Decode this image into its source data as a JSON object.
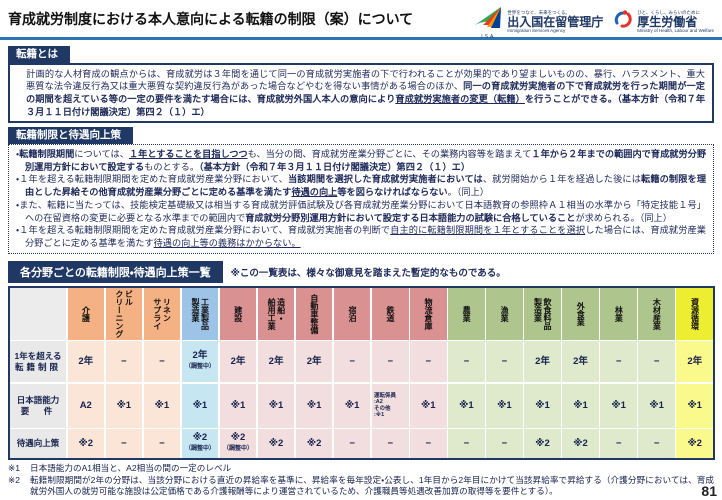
{
  "header": {
    "title": "育成就労制度における本人意向による転籍の制限（案）について",
    "isa": {
      "abbr": "ISA",
      "tagline": "世界をつなぐ、未来をつくる。",
      "name": "出入国在留管理庁",
      "name_en": "Immigration Services Agency"
    },
    "mhlw": {
      "tagline": "ひと、くらし、みらいのために",
      "name": "厚生労働省",
      "name_en": "Ministry of Health, Labour and Welfare"
    }
  },
  "colors": {
    "navy": "#1f3864",
    "rule_blue": "#2e75b6",
    "group_orange": "#f4b183",
    "group_blue": "#9dc3e6",
    "group_red": "#d99191",
    "group_green": "#aec68e",
    "group_yellow": "#eded32",
    "label_gray": "#e9e9e9"
  },
  "section1": {
    "title": "転籍とは",
    "seg1": "　計画的な人材育成の観点からは、育成就労は３年間を通じて同一の育成就労実施者の下で行われることが効果的であり望ましいものの、暴行、ハラスメント、重大悪質な法令違反行為又は重大悪質な契約違反行為があった場合などやむを得ない事情がある場合のほか、",
    "seg2": "同一の育成就労実施者の下で育成就労を行った期間が一定の期間を超えている等の一定の要件を満たす場合には、育成就労外国人本人の意向により",
    "seg3": "育成就労実施者の変更（転籍）",
    "seg4": "を行うことができる。（基本方針（令和７年３月１１日付け閣議決定）第四２（１）エ）"
  },
  "section2": {
    "title": "転籍制限と待遇向上策",
    "b1s1": "・",
    "b1s2": "転籍制限期間",
    "b1s3": "については、",
    "b1s4": "１年とすることを目指しつつ",
    "b1s5": "も、当分の間、育成就労産業分野ごとに、その業務内容等を踏まえて",
    "b1s6": "１年から２年までの範囲内で育成就労分野別運用方針において設定する",
    "b1s7": "ものとする。",
    "b1s8": "（基本方針（令和７年３月１１日付け閣議決定）第四２（１）エ）",
    "b2s1": "・１年を超える転籍制限期間を定めた育成就労産業分野において、",
    "b2s2": "当該期間を選択した育成就労実施者においては",
    "b2s3": "、就労開始から１年を経過した後には",
    "b2s4": "転籍の制限を理由とした昇給その他育成就労産業分野ごとに定める基準を満たす",
    "b2s5": "待遇の向上",
    "b2s6": "等を図らなければならない",
    "b2s7": "。（同上）",
    "b3s1": "・また、転籍に当たっては、技能検定基礎級又は相当する育成就労評価試験及び各育成就労産業分野において日本語教育の参照枠Ａ１相当の水準から「特定技能１号」への在留資格の変更に必要となる水準までの範囲内で",
    "b3s2": "育成就労分野別運用方針において設定する日本語能力の試験に合格していること",
    "b3s3": "が求められる。（同上）",
    "b4s1": "・１年を超える転籍制限期間を定めた育成就労産業分野において、育成就労実施者の判断で",
    "b4s2": "自主的に転籍制限期間を１年とすることを選択",
    "b4s3": "した場合には、育成就労産業分野ごとに定める基準を満たす",
    "b4s4": "待遇の向上等の義務はかからない。"
  },
  "table": {
    "title": "各分野ごとの転籍制限・待遇向上策一覧",
    "note": "※この一覧表は、様々な御意見を踏まえた暫定的なものである。",
    "columns": [
      {
        "name": "介護",
        "lines": [
          "介護"
        ],
        "group": "orange"
      },
      {
        "name": "ビルクリーニング",
        "lines": [
          "ビル",
          "クリーニング"
        ],
        "group": "orange"
      },
      {
        "name": "リネンサプライ",
        "lines": [
          "リネン",
          "サプライ"
        ],
        "group": "orange"
      },
      {
        "name": "工業製品製造業",
        "lines": [
          "工業製品",
          "製造業"
        ],
        "group": "blue"
      },
      {
        "name": "建設",
        "lines": [
          "建設"
        ],
        "group": "red"
      },
      {
        "name": "造船・舶用工業",
        "lines": [
          "造船・",
          "舶用工業"
        ],
        "group": "red"
      },
      {
        "name": "自動車整備",
        "lines": [
          "自動車整備"
        ],
        "group": "red"
      },
      {
        "name": "宿泊",
        "lines": [
          "宿泊"
        ],
        "group": "red"
      },
      {
        "name": "鉄道",
        "lines": [
          "鉄道"
        ],
        "group": "red"
      },
      {
        "name": "物流倉庫",
        "lines": [
          "物流倉庫"
        ],
        "group": "red"
      },
      {
        "name": "農業",
        "lines": [
          "農業"
        ],
        "group": "green"
      },
      {
        "name": "漁業",
        "lines": [
          "漁業"
        ],
        "group": "green"
      },
      {
        "name": "飲食料品製造業",
        "lines": [
          "飲食料品",
          "製造業"
        ],
        "group": "green"
      },
      {
        "name": "外食業",
        "lines": [
          "外食業"
        ],
        "group": "green"
      },
      {
        "name": "林業",
        "lines": [
          "林業"
        ],
        "group": "green"
      },
      {
        "name": "木材産業",
        "lines": [
          "木材産業"
        ],
        "group": "green"
      },
      {
        "name": "資源循環",
        "lines": [
          "資源循環"
        ],
        "group": "yellow"
      }
    ],
    "rows": [
      {
        "label_lines": [
          "1年を超える",
          "転籍制限"
        ],
        "cells": [
          {
            "v": "2年"
          },
          {
            "v": "−"
          },
          {
            "v": "−"
          },
          {
            "v": "2年",
            "sub": "（調整中）"
          },
          {
            "v": "2年"
          },
          {
            "v": "2年"
          },
          {
            "v": "2年"
          },
          {
            "v": "−"
          },
          {
            "v": "−"
          },
          {
            "v": "−"
          },
          {
            "v": "−"
          },
          {
            "v": "−"
          },
          {
            "v": "2年"
          },
          {
            "v": "2年"
          },
          {
            "v": "−"
          },
          {
            "v": "−"
          },
          {
            "v": "2年"
          }
        ]
      },
      {
        "label_lines": [
          "日本語能力",
          "要　件"
        ],
        "cells": [
          {
            "v": "A2"
          },
          {
            "v": "※1"
          },
          {
            "v": "※1"
          },
          {
            "v": "※1"
          },
          {
            "v": "※1"
          },
          {
            "v": "※1"
          },
          {
            "v": "※1"
          },
          {
            "v": "※1"
          },
          {
            "small": [
              "運転係員",
              ":A2",
              "その他",
              ":※1"
            ]
          },
          {
            "v": "※1"
          },
          {
            "v": "※1"
          },
          {
            "v": "※1"
          },
          {
            "v": "※1"
          },
          {
            "v": "※1"
          },
          {
            "v": "※1"
          },
          {
            "v": "※1"
          },
          {
            "v": "※1"
          }
        ]
      },
      {
        "label_lines": [
          "待遇向上策"
        ],
        "cells": [
          {
            "v": "※2"
          },
          {
            "v": "−"
          },
          {
            "v": "−"
          },
          {
            "v": "※2",
            "sub": "（調整中）"
          },
          {
            "v": "※2",
            "sub": "（調整中）"
          },
          {
            "v": "※2"
          },
          {
            "v": "※2"
          },
          {
            "v": "−"
          },
          {
            "v": "−"
          },
          {
            "v": "−"
          },
          {
            "v": "−"
          },
          {
            "v": "−"
          },
          {
            "v": "※2"
          },
          {
            "v": "※2"
          },
          {
            "v": "−"
          },
          {
            "v": "−"
          },
          {
            "v": "※2"
          }
        ]
      }
    ]
  },
  "footnotes": {
    "n1_label": "※1",
    "n1_text": "日本語能力のA1相当と、A2相当の間の一定のレベル",
    "n2_label": "※2",
    "n2_text": "転籍制限期間が2年の分野は、当該分野における直近の昇給率を基準に、昇給率を毎年設定・公表し、1年目から2年目にかけて当該昇給率で昇給する（介護分野においては、育成就労外国人の就労可能な施設は公定価格である介護報酬等により運営されているため、介護職員等処遇改善加算の取得等を要件とする）。"
  },
  "page_number": "81"
}
